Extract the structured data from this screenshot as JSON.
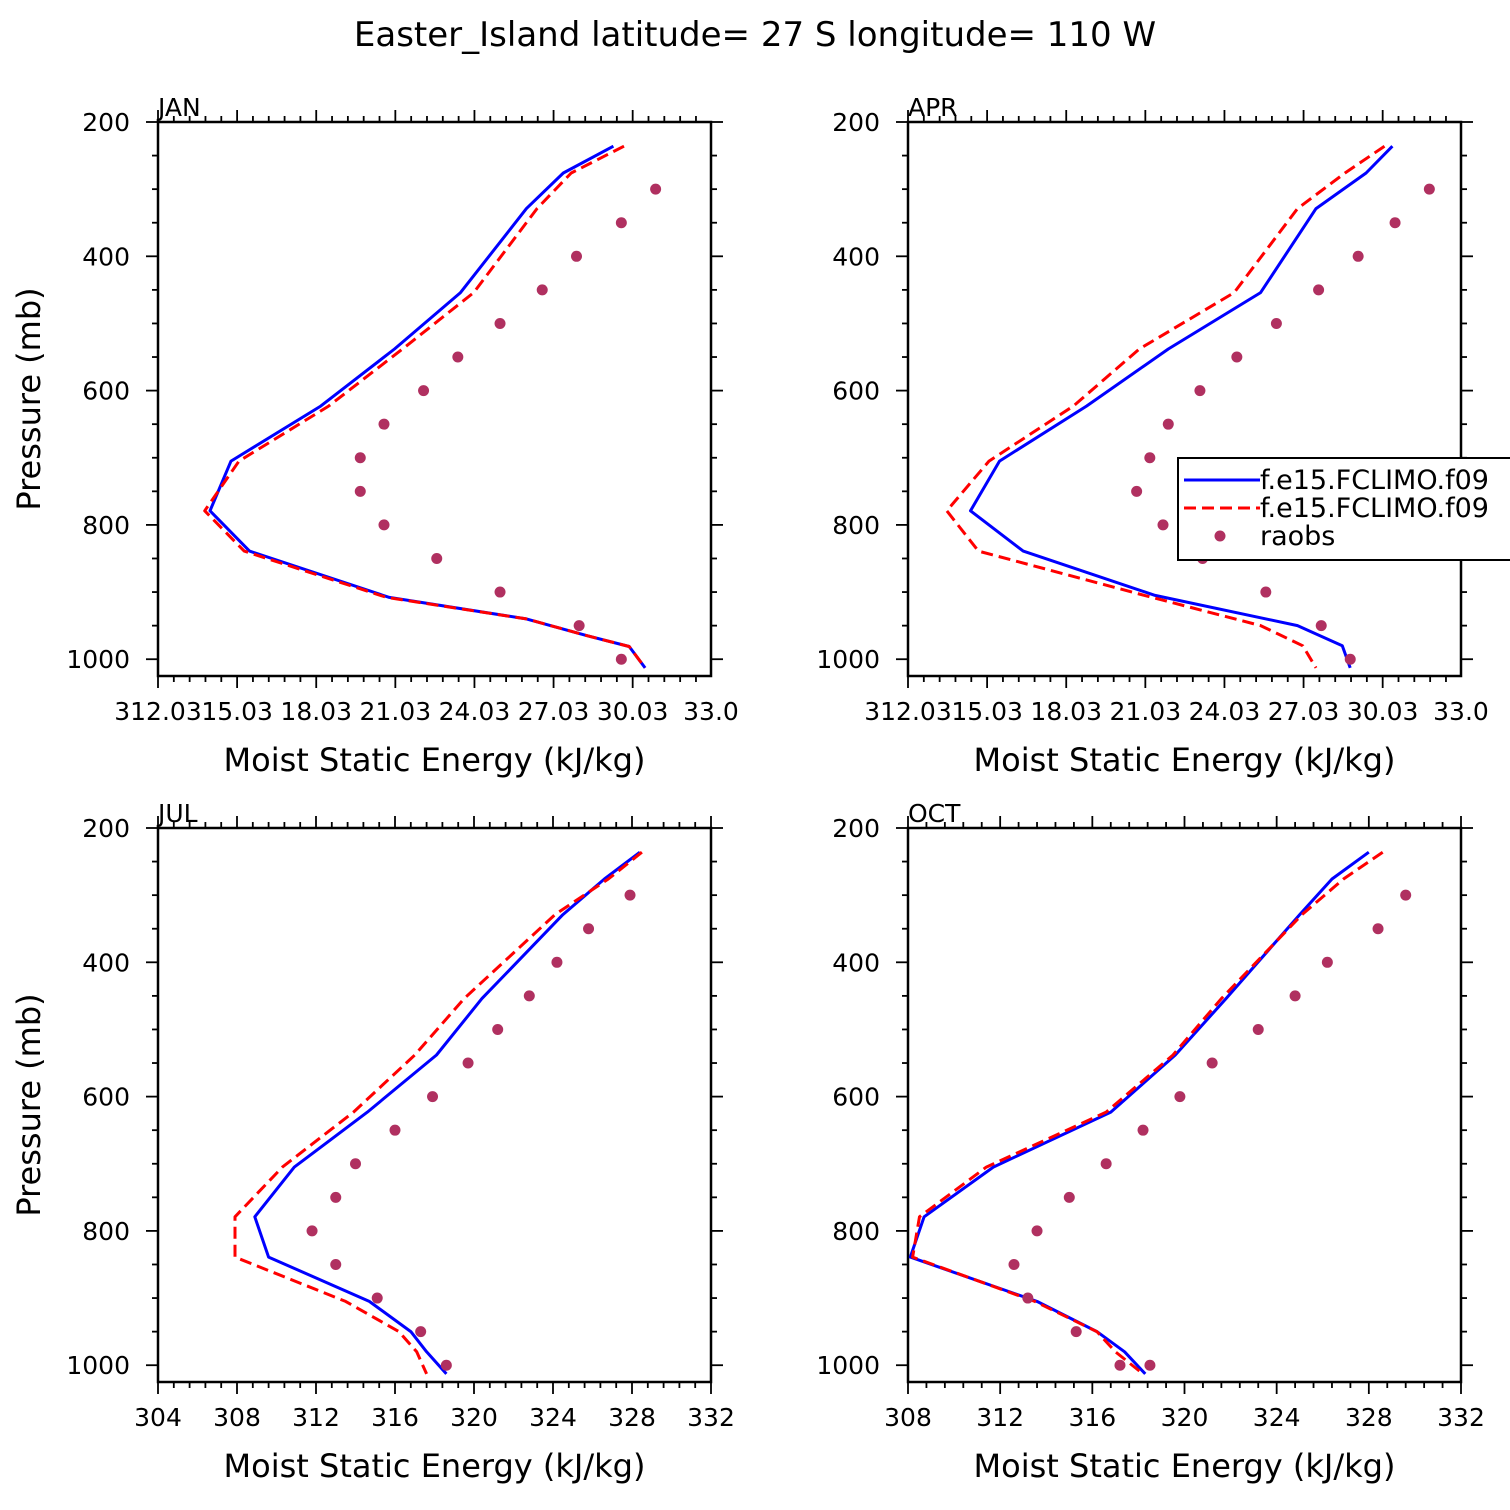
{
  "figure": {
    "title": "Easter_Island  latitude= 27 S longitude= 110 W"
  },
  "legend": {
    "entries": [
      "f.e15.FCLIMO.f09",
      "f.e15.FCLIMO.f09",
      "raobs"
    ],
    "colors": [
      "#0000ff",
      "#ff0000",
      "#b03060"
    ],
    "styles": [
      "solid",
      "dashed",
      "markers"
    ],
    "placement": "right of APR panel"
  },
  "chart_data": [
    {
      "type": "line",
      "panel": "JAN",
      "xlabel": "Moist Static Energy (kJ/kg)",
      "ylabel": "Pressure (mb)",
      "xlim": [
        312.03,
        333.0
      ],
      "ylim": [
        1025,
        200
      ],
      "x_ticks": [
        312.03,
        315.03,
        318.03,
        321.03,
        324.03,
        327.03,
        330.03,
        333.0
      ],
      "x_tick_labels": [
        "312.03",
        "15.03",
        "18.03",
        "21.03",
        "24.03",
        "27.03",
        "30.03",
        "33.0"
      ],
      "y_ticks": [
        200,
        400,
        600,
        800,
        1000
      ],
      "y_tick_labels": [
        "200",
        "400",
        "600",
        "800",
        "1000"
      ],
      "series": [
        {
          "name": "f.e15.FCLIMO.f09",
          "color": "#0000ff",
          "style": "solid",
          "x": [
            329.3,
            327.4,
            326.0,
            323.5,
            321.0,
            318.2,
            314.8,
            314.0,
            315.5,
            320.8,
            326.0,
            328.3,
            329.9,
            330.5
          ],
          "y": [
            236,
            276,
            329,
            454,
            538,
            623,
            705,
            779,
            839,
            908,
            940,
            965,
            981,
            1013
          ]
        },
        {
          "name": "f.e15.FCLIMO.f09",
          "color": "#ff0000",
          "style": "dashed",
          "x": [
            329.7,
            327.7,
            326.4,
            324.0,
            321.3,
            318.5,
            315.1,
            313.8,
            315.3,
            320.7,
            326.0,
            328.3,
            329.9,
            330.5
          ],
          "y": [
            236,
            276,
            329,
            454,
            538,
            623,
            705,
            779,
            839,
            908,
            940,
            965,
            981,
            1013
          ]
        },
        {
          "name": "raobs",
          "color": "#b03060",
          "style": "markers",
          "x": [
            330.9,
            329.6,
            327.9,
            326.6,
            325.0,
            323.4,
            322.1,
            320.6,
            319.7,
            319.7,
            320.6,
            322.6,
            325.0,
            328.0,
            329.6
          ],
          "y": [
            300,
            350,
            400,
            450,
            500,
            550,
            600,
            650,
            700,
            750,
            800,
            850,
            900,
            950,
            1000
          ]
        }
      ]
    },
    {
      "type": "line",
      "panel": "APR",
      "xlabel": "Moist Static Energy (kJ/kg)",
      "ylabel": "",
      "xlim": [
        312.03,
        333.0
      ],
      "ylim": [
        1025,
        200
      ],
      "x_ticks": [
        312.03,
        315.03,
        318.03,
        321.03,
        324.03,
        327.03,
        330.03,
        333.0
      ],
      "x_tick_labels": [
        "312.03",
        "15.03",
        "18.03",
        "21.03",
        "24.03",
        "27.03",
        "30.03",
        "33.0"
      ],
      "y_ticks": [
        200,
        400,
        600,
        800,
        1000
      ],
      "y_tick_labels": [
        "200",
        "400",
        "600",
        "800",
        "1000"
      ],
      "series": [
        {
          "name": "f.e15.FCLIMO.f09",
          "color": "#0000ff",
          "style": "solid",
          "x": [
            330.4,
            329.4,
            327.5,
            325.4,
            321.9,
            318.8,
            315.5,
            314.4,
            316.4,
            321.4,
            326.8,
            328.5,
            328.8
          ],
          "y": [
            236,
            276,
            329,
            454,
            538,
            623,
            705,
            779,
            839,
            905,
            950,
            980,
            1013
          ]
        },
        {
          "name": "f.e15.FCLIMO.f09",
          "color": "#ff0000",
          "style": "dashed",
          "x": [
            330.1,
            328.6,
            326.8,
            324.4,
            320.8,
            318.3,
            315.1,
            313.5,
            314.7,
            321.0,
            325.4,
            327.0,
            327.5
          ],
          "y": [
            236,
            276,
            329,
            454,
            538,
            623,
            705,
            779,
            839,
            905,
            950,
            980,
            1013
          ]
        },
        {
          "name": "raobs",
          "color": "#b03060",
          "style": "markers",
          "x": [
            331.8,
            330.5,
            329.1,
            327.6,
            326.0,
            324.5,
            323.1,
            321.9,
            321.2,
            320.7,
            321.7,
            323.2,
            325.6,
            327.7,
            328.8
          ],
          "y": [
            300,
            350,
            400,
            450,
            500,
            550,
            600,
            650,
            700,
            750,
            800,
            850,
            900,
            950,
            1000
          ]
        }
      ]
    },
    {
      "type": "line",
      "panel": "JUL",
      "xlabel": "Moist Static Energy (kJ/kg)",
      "ylabel": "Pressure (mb)",
      "xlim": [
        304,
        332
      ],
      "ylim": [
        1025,
        200
      ],
      "x_ticks": [
        304,
        308,
        312,
        316,
        320,
        324,
        328,
        332
      ],
      "x_tick_labels": [
        "304",
        "308",
        "312",
        "316",
        "320",
        "324",
        "328",
        "332"
      ],
      "y_ticks": [
        200,
        400,
        600,
        800,
        1000
      ],
      "y_tick_labels": [
        "200",
        "400",
        "600",
        "800",
        "1000"
      ],
      "series": [
        {
          "name": "f.e15.FCLIMO.f09",
          "color": "#0000ff",
          "style": "solid",
          "x": [
            328.4,
            326.6,
            324.5,
            320.4,
            318.1,
            314.6,
            310.9,
            308.9,
            309.6,
            314.7,
            316.8,
            317.6,
            318.6
          ],
          "y": [
            236,
            276,
            329,
            454,
            538,
            623,
            705,
            779,
            839,
            905,
            950,
            980,
            1013
          ]
        },
        {
          "name": "f.e15.FCLIMO.f09",
          "color": "#ff0000",
          "style": "dashed",
          "x": [
            328.5,
            326.8,
            324.1,
            319.5,
            317.0,
            313.9,
            310.3,
            307.9,
            307.9,
            313.5,
            316.2,
            317.1,
            317.6
          ],
          "y": [
            236,
            276,
            329,
            454,
            538,
            623,
            705,
            779,
            839,
            905,
            950,
            980,
            1013
          ]
        },
        {
          "name": "raobs",
          "color": "#b03060",
          "style": "markers",
          "x": [
            327.9,
            325.8,
            324.2,
            322.8,
            321.2,
            319.7,
            317.9,
            316.0,
            314.0,
            313.0,
            311.8,
            313.0,
            315.1,
            317.3,
            318.6
          ],
          "y": [
            300,
            350,
            400,
            450,
            500,
            550,
            600,
            650,
            700,
            750,
            800,
            850,
            900,
            950,
            1000
          ]
        }
      ]
    },
    {
      "type": "line",
      "panel": "OCT",
      "xlabel": "Moist Static Energy (kJ/kg)",
      "ylabel": "",
      "xlim": [
        308,
        332
      ],
      "ylim": [
        1025,
        200
      ],
      "x_ticks": [
        308,
        312,
        316,
        320,
        324,
        328,
        332
      ],
      "x_tick_labels": [
        "308",
        "312",
        "316",
        "320",
        "324",
        "328",
        "332"
      ],
      "y_ticks": [
        200,
        400,
        600,
        800,
        1000
      ],
      "y_tick_labels": [
        "200",
        "400",
        "600",
        "800",
        "1000"
      ],
      "series": [
        {
          "name": "f.e15.FCLIMO.f09",
          "color": "#0000ff",
          "style": "solid",
          "x": [
            328.0,
            326.4,
            325.0,
            321.8,
            319.6,
            316.8,
            311.7,
            308.7,
            308.1,
            313.6,
            316.2,
            317.4,
            318.3
          ],
          "y": [
            236,
            276,
            329,
            454,
            538,
            623,
            705,
            779,
            839,
            905,
            950,
            980,
            1013
          ]
        },
        {
          "name": "f.e15.FCLIMO.f09",
          "color": "#ff0000",
          "style": "dashed",
          "x": [
            328.6,
            326.9,
            325.1,
            321.6,
            319.5,
            316.6,
            311.4,
            308.5,
            308.2,
            313.5,
            316.2,
            317.0,
            318.2
          ],
          "y": [
            236,
            276,
            329,
            454,
            538,
            623,
            705,
            779,
            839,
            905,
            950,
            980,
            1013
          ]
        },
        {
          "name": "raobs",
          "color": "#b03060",
          "style": "markers",
          "x": [
            329.6,
            328.4,
            326.2,
            324.8,
            323.2,
            321.2,
            319.8,
            318.2,
            316.6,
            315.0,
            313.6,
            312.6,
            313.2,
            315.3,
            317.2,
            318.5
          ],
          "y": [
            300,
            350,
            400,
            450,
            500,
            550,
            600,
            650,
            700,
            750,
            800,
            850,
            900,
            950,
            1000,
            1000
          ]
        }
      ]
    }
  ]
}
